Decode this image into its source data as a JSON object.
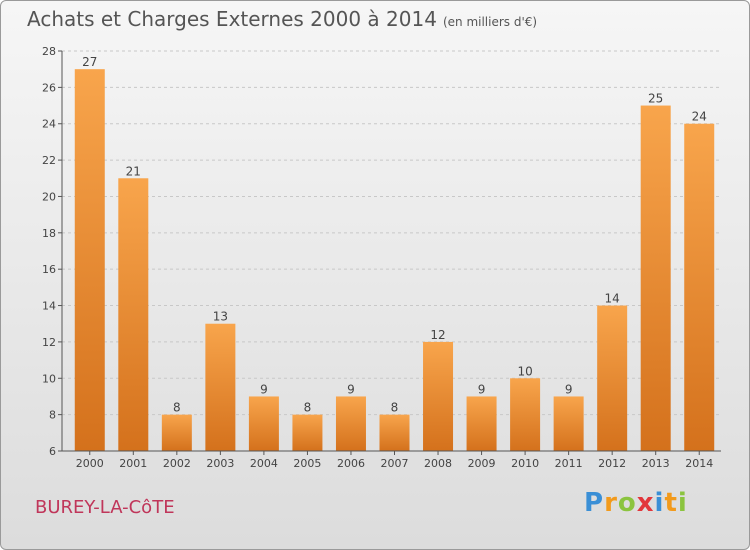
{
  "chart_data": {
    "type": "bar",
    "title": "Achats et Charges Externes 2000 à 2014",
    "subtitle": "(en milliers d'€)",
    "categories": [
      "2000",
      "2001",
      "2002",
      "2003",
      "2004",
      "2005",
      "2006",
      "2007",
      "2008",
      "2009",
      "2010",
      "2011",
      "2012",
      "2013",
      "2014"
    ],
    "values": [
      27,
      21,
      8,
      13,
      9,
      8,
      9,
      8,
      12,
      9,
      10,
      9,
      14,
      25,
      24
    ],
    "ylim": [
      6,
      28
    ],
    "yticks": [
      6,
      8,
      10,
      12,
      14,
      16,
      18,
      20,
      22,
      24,
      26,
      28
    ],
    "grid": true,
    "bar_color_light": "#f8a54c",
    "bar_color_dark": "#d4711c"
  },
  "place_name": "BUREY-LA-CôTE",
  "logo": {
    "letters": [
      "P",
      "r",
      "o",
      "x",
      "i",
      "t",
      "i"
    ],
    "colors": [
      "#3a8fd6",
      "#f29a1b",
      "#8bc43f",
      "#e2363b",
      "#3a8fd6",
      "#f29a1b",
      "#8bc43f"
    ]
  }
}
